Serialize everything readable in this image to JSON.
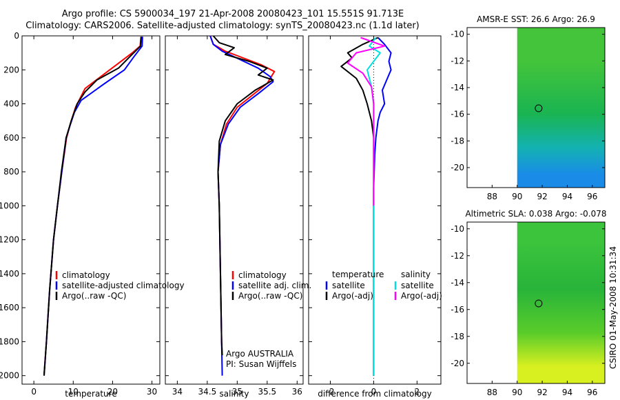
{
  "header": {
    "line1": "Argo profile: CS 5900034_197 21-Apr-2008 20080423_101 15.551S 91.713E",
    "line2": "Climatology: CARS2006. Satellite-adjusted climatology: synTS_20080423.nc (1.1d later)"
  },
  "side_stamp": "CSIRO 01-May-2008 10:31:34",
  "chart_data": [
    {
      "type": "line",
      "id": "temperature",
      "xlabel": "temperature",
      "xlim": [
        -3,
        32
      ],
      "ylim": [
        2050,
        0
      ],
      "xticks": [
        0,
        10,
        20,
        30
      ],
      "yticks": [
        0,
        200,
        400,
        600,
        800,
        1000,
        1200,
        1400,
        1600,
        1800,
        2000
      ],
      "legend": [
        {
          "name": "climatology",
          "color": "#ff0000"
        },
        {
          "name": "satellite-adjusted climatology",
          "color": "#0000ff"
        },
        {
          "name": "Argo(..raw -QC)",
          "color": "#000000"
        }
      ],
      "series": [
        {
          "name": "climatology",
          "color": "#ff0000",
          "x": [
            27.2,
            27.0,
            25.0,
            21.0,
            17.0,
            13.0,
            10.6,
            9.5,
            8.3,
            7.1,
            6.0,
            5.0,
            4.0,
            3.2,
            2.6
          ],
          "y": [
            5,
            60,
            100,
            170,
            240,
            310,
            420,
            500,
            600,
            800,
            1000,
            1200,
            1500,
            1800,
            1990
          ]
        },
        {
          "name": "satellite-adjusted climatology",
          "color": "#0000ff",
          "x": [
            27.6,
            27.5,
            25.5,
            23.0,
            18.0,
            12.0,
            10.3,
            9.3,
            8.2,
            7.1,
            6.0,
            5.0,
            4.0,
            3.2,
            2.6
          ],
          "y": [
            5,
            60,
            120,
            200,
            280,
            380,
            450,
            520,
            600,
            800,
            1000,
            1200,
            1500,
            1800,
            2000
          ]
        },
        {
          "name": "Argo(..raw -QC)",
          "color": "#000000",
          "x": [
            27.3,
            27.1,
            24.5,
            21.5,
            16.0,
            13.0,
            11.0,
            9.5,
            8.2,
            7.0,
            6.0,
            5.0,
            4.0,
            3.2,
            2.6
          ],
          "y": [
            5,
            60,
            120,
            190,
            260,
            330,
            400,
            500,
            600,
            800,
            1000,
            1200,
            1500,
            1800,
            2000
          ]
        }
      ]
    },
    {
      "type": "line",
      "id": "salinity",
      "xlabel": "salinity",
      "xlim": [
        33.8,
        36.1
      ],
      "ylim": [
        2050,
        0
      ],
      "xticks": [
        34,
        34.5,
        35,
        35.5,
        36
      ],
      "legend": [
        {
          "name": "climatology",
          "color": "#ff0000"
        },
        {
          "name": "satellite adj. clim.",
          "color": "#0000ff"
        },
        {
          "name": "Argo(..raw -QC)",
          "color": "#000000"
        }
      ],
      "annotation": [
        "Argo AUSTRALIA",
        "PI: Susan Wijffels"
      ],
      "series": [
        {
          "name": "climatology",
          "color": "#ff0000",
          "x": [
            34.55,
            34.6,
            34.8,
            35.1,
            35.4,
            35.62,
            35.5,
            35.25,
            35.0,
            34.82,
            34.72,
            34.68,
            34.7,
            34.72,
            34.74,
            34.75
          ],
          "y": [
            0,
            50,
            90,
            130,
            170,
            210,
            280,
            350,
            420,
            520,
            640,
            800,
            1000,
            1400,
            1800,
            1880
          ]
        },
        {
          "name": "satellite adj. clim.",
          "color": "#0000ff",
          "x": [
            34.55,
            34.6,
            34.75,
            35.05,
            35.35,
            35.55,
            35.6,
            35.35,
            35.05,
            34.85,
            34.72,
            34.68,
            34.7,
            34.72,
            34.74,
            34.75
          ],
          "y": [
            0,
            50,
            90,
            140,
            190,
            240,
            270,
            340,
            420,
            520,
            640,
            800,
            1000,
            1400,
            1800,
            2000
          ]
        },
        {
          "name": "Argo(..raw -QC)",
          "color": "#000000",
          "x": [
            34.6,
            34.7,
            34.95,
            34.8,
            35.2,
            35.5,
            35.35,
            35.6,
            35.3,
            35.0,
            34.8,
            34.7,
            34.68,
            34.7,
            34.72,
            34.74,
            34.75
          ],
          "y": [
            0,
            40,
            70,
            110,
            150,
            190,
            230,
            260,
            320,
            400,
            500,
            620,
            800,
            1000,
            1400,
            1800,
            1880
          ]
        }
      ]
    },
    {
      "type": "line",
      "id": "difference",
      "xlabel": "difference from climatology",
      "xlim": [
        -3,
        3.1
      ],
      "ylim": [
        2050,
        0
      ],
      "xticks": [
        -2,
        0,
        2
      ],
      "legend_titles": [
        "temperature",
        "salinity"
      ],
      "legend": [
        {
          "name": "satellite",
          "group": "temperature",
          "color": "#0000ff"
        },
        {
          "name": "Argo(-adj)",
          "group": "temperature",
          "color": "#000000"
        },
        {
          "name": "satellite",
          "group": "salinity",
          "color": "#00e0e0"
        },
        {
          "name": "Argo(-adj)",
          "group": "salinity",
          "color": "#ff00ff"
        }
      ],
      "series": [
        {
          "name": "temperature satellite",
          "color": "#0000ff",
          "x": [
            0.2,
            0.5,
            0.8,
            0.7,
            0.8,
            0.6,
            0.4,
            0.5,
            0.3,
            0.2,
            0.1,
            0.05,
            0.0,
            0.0,
            0.0,
            0.0
          ],
          "y": [
            10,
            50,
            100,
            150,
            200,
            260,
            320,
            400,
            450,
            500,
            600,
            700,
            900,
            1200,
            1600,
            2000
          ]
        },
        {
          "name": "temperature Argo(-adj)",
          "color": "#000000",
          "x": [
            0.2,
            -0.5,
            -1.2,
            -1.0,
            -1.5,
            -0.8,
            -0.5,
            -0.3,
            -0.1,
            0.0,
            0.0,
            0.0,
            0.0,
            0.0
          ],
          "y": [
            10,
            50,
            100,
            130,
            180,
            250,
            320,
            400,
            500,
            600,
            800,
            1200,
            1600,
            2000
          ]
        },
        {
          "name": "salinity satellite",
          "color": "#00e0e0",
          "x": [
            0.1,
            -0.2,
            0.3,
            0.0,
            -0.3,
            -0.1,
            0.0,
            0.0,
            0.0,
            0.0
          ],
          "y": [
            10,
            60,
            100,
            150,
            200,
            300,
            400,
            800,
            1400,
            2000
          ]
        },
        {
          "name": "salinity Argo(-adj)",
          "color": "#ff00ff",
          "x": [
            -0.6,
            0.5,
            -0.8,
            -1.2,
            -0.5,
            -0.1,
            0.0,
            0.0
          ],
          "y": [
            10,
            60,
            100,
            160,
            220,
            300,
            400,
            1000
          ]
        }
      ]
    },
    {
      "type": "heatmap",
      "id": "sst-map",
      "title": "AMSR-E SST: 26.6 Argo: 26.9",
      "xlim": [
        86,
        97
      ],
      "ylim": [
        -21.5,
        -9.5
      ],
      "xticks": [
        88,
        90,
        92,
        94,
        96
      ],
      "yticks": [
        -10,
        -12,
        -14,
        -16,
        -18,
        -20
      ],
      "data_xmin": 90,
      "argo_position": {
        "lon": 91.713,
        "lat": -15.551
      },
      "color_bands": [
        {
          "lat_from": -9.5,
          "lat_to": -14.5,
          "color": "#44c43a"
        },
        {
          "lat_from": -14.5,
          "lat_to": -17.5,
          "color": "#1ab452"
        },
        {
          "lat_from": -17.5,
          "lat_to": -19.5,
          "color": "#13b2b2"
        },
        {
          "lat_from": -19.5,
          "lat_to": -21.5,
          "color": "#1a8ce8"
        }
      ]
    },
    {
      "type": "heatmap",
      "id": "sla-map",
      "title": "Altimetric SLA: 0.038 Argo: -0.078",
      "xlim": [
        86,
        97
      ],
      "ylim": [
        -21.5,
        -9.5
      ],
      "xticks": [
        88,
        90,
        92,
        94,
        96
      ],
      "yticks": [
        -10,
        -12,
        -14,
        -16,
        -18,
        -20
      ],
      "data_xmin": 90,
      "argo_position": {
        "lon": 91.713,
        "lat": -15.551
      },
      "color_bands": [
        {
          "lat_from": -9.5,
          "lat_to": -12.5,
          "color": "#3cc43c"
        },
        {
          "lat_from": -12.5,
          "lat_to": -16.5,
          "color": "#28b43a"
        },
        {
          "lat_from": -16.5,
          "lat_to": -19.0,
          "color": "#5acc2a"
        },
        {
          "lat_from": -19.0,
          "lat_to": -21.5,
          "color": "#d8f020"
        }
      ]
    }
  ]
}
